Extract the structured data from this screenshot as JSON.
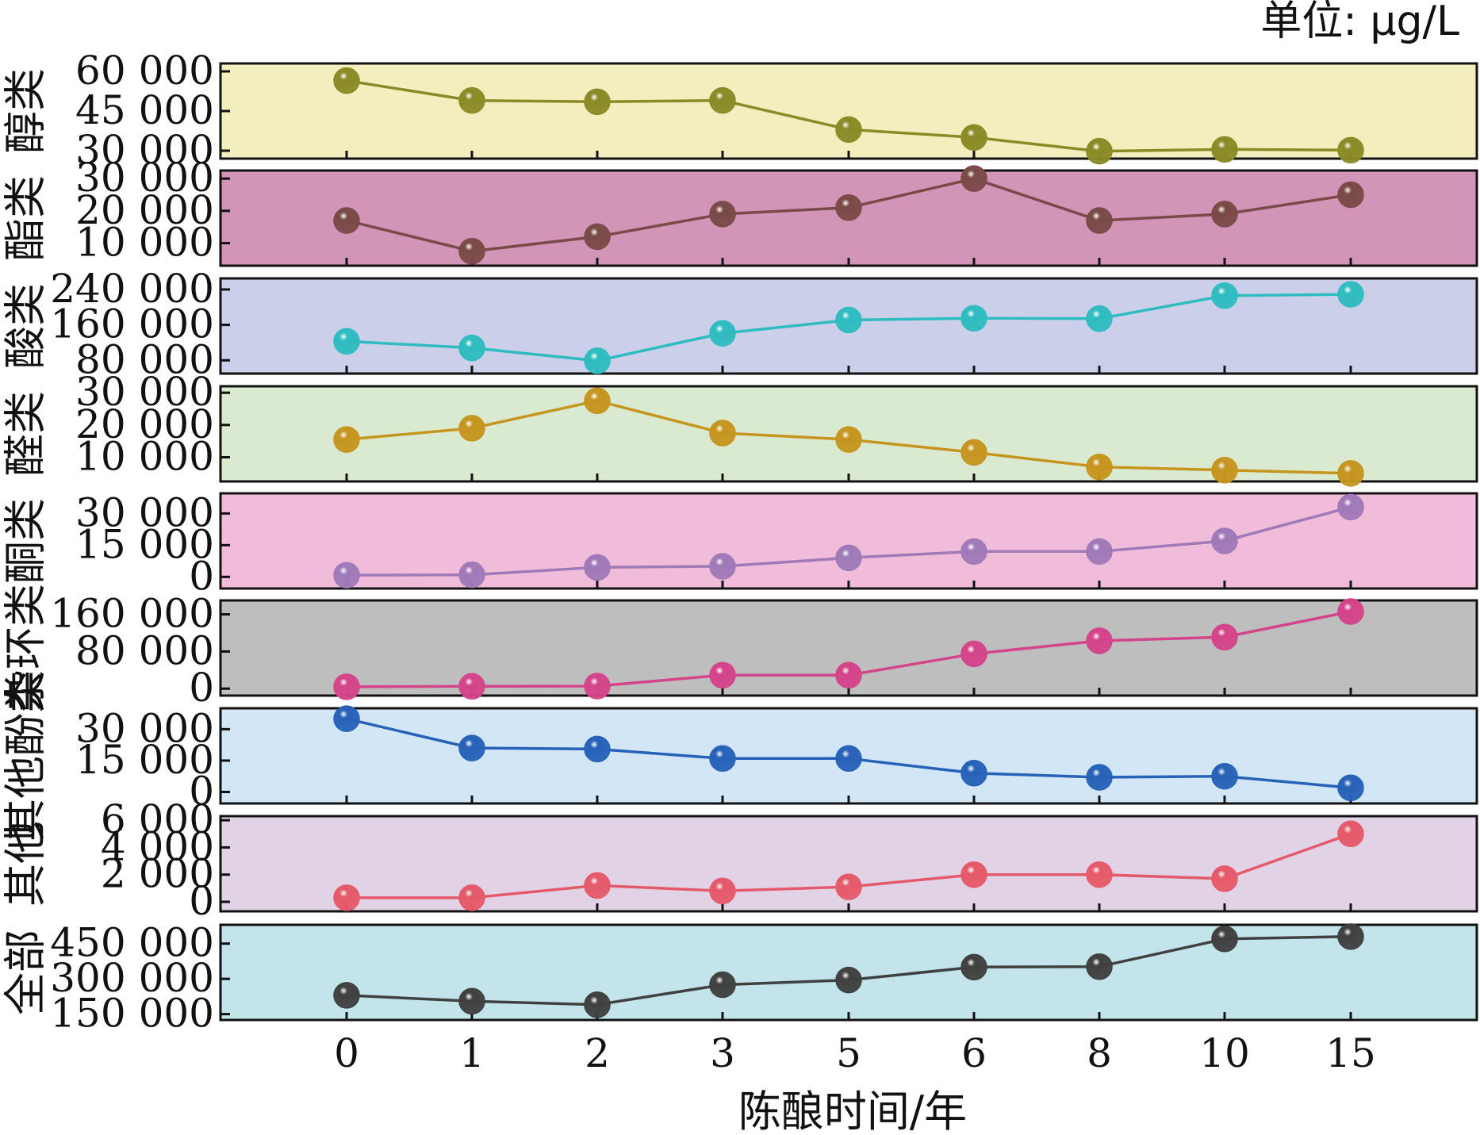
{
  "chart_data": {
    "type": "line",
    "unit": "单位: μg/L",
    "xlabel": "陈酿时间/年",
    "categories": [
      "0",
      "1",
      "2",
      "3",
      "5",
      "6",
      "8",
      "10",
      "15"
    ],
    "panels": [
      {
        "name": "醇类",
        "bg": "#f2eebe",
        "color": "#8a8a26",
        "ylim": [
          27000,
          63000
        ],
        "ticks": [
          30000,
          45000,
          60000
        ],
        "tick_labels": [
          "30 000",
          "45 000",
          "60 000"
        ],
        "values": [
          56500,
          49000,
          48500,
          49000,
          38000,
          35000,
          29800,
          30500,
          30200
        ]
      },
      {
        "name": "酯类",
        "bg": "#d294b7",
        "color": "#7a4a48",
        "ylim": [
          3000,
          32500
        ],
        "ticks": [
          10000,
          20000,
          30000
        ],
        "tick_labels": [
          "10 000",
          "20 000",
          "30 000"
        ],
        "values": [
          17000,
          7500,
          12000,
          19000,
          21000,
          30000,
          17000,
          19000,
          25000
        ]
      },
      {
        "name": "酸类",
        "bg": "#cccfea",
        "color": "#2fbcc0",
        "ylim": [
          50000,
          265000
        ],
        "ticks": [
          80000,
          160000,
          240000
        ],
        "tick_labels": [
          "80 000",
          "160 000",
          "240 000"
        ],
        "values": [
          123000,
          108000,
          79000,
          141000,
          171000,
          175000,
          174000,
          226000,
          229000
        ]
      },
      {
        "name": "醛类",
        "bg": "#d9ead0",
        "color": "#c5951f",
        "ylim": [
          2500,
          32000
        ],
        "ticks": [
          10000,
          20000,
          30000
        ],
        "tick_labels": [
          "10 000",
          "20 000",
          "30 000"
        ],
        "values": [
          15500,
          19000,
          27500,
          17500,
          15500,
          11500,
          7000,
          6000,
          5000
        ]
      },
      {
        "name": "酮类",
        "bg": "#f0bcd9",
        "color": "#a07ab8",
        "ylim": [
          -5500,
          39500
        ],
        "ticks": [
          0,
          15000,
          30000
        ],
        "tick_labels": [
          "0",
          "15 000",
          "30 000"
        ],
        "values": [
          800,
          1000,
          4500,
          5000,
          9000,
          12000,
          12000,
          17000,
          33000
        ]
      },
      {
        "name": "杂环类",
        "bg": "#bebebe",
        "color": "#d4448a",
        "ylim": [
          -15000,
          190000
        ],
        "ticks": [
          0,
          80000,
          160000
        ],
        "tick_labels": [
          "0",
          "80 000",
          "160 000"
        ],
        "values": [
          4000,
          5000,
          5500,
          29000,
          29000,
          75000,
          103000,
          111000,
          166000
        ]
      },
      {
        "name": "其他酚类",
        "bg": "#d2e6f6",
        "color": "#2762b8",
        "ylim": [
          -5500,
          40000
        ],
        "ticks": [
          0,
          15000,
          30000
        ],
        "tick_labels": [
          "0",
          "15 000",
          "30 000"
        ],
        "values": [
          35000,
          21000,
          20500,
          16000,
          16000,
          9000,
          7000,
          7500,
          2000
        ]
      },
      {
        "name": "其他",
        "bg": "#e2d2e6",
        "color": "#e55a6a",
        "ylim": [
          -700,
          6300
        ],
        "ticks": [
          0,
          2000,
          4000,
          6000
        ],
        "tick_labels": [
          "0",
          "2 000",
          "4 000",
          "6 000"
        ],
        "values": [
          300,
          300,
          1200,
          800,
          1100,
          2000,
          2000,
          1700,
          5000
        ]
      },
      {
        "name": "全部",
        "bg": "#c2e4ea",
        "color": "#404040",
        "ylim": [
          125000,
          530000
        ],
        "ticks": [
          150000,
          300000,
          450000
        ],
        "tick_labels": [
          "150 000",
          "300 000",
          "450 000"
        ],
        "values": [
          230000,
          205000,
          190000,
          275000,
          295000,
          350000,
          352000,
          470000,
          480000
        ]
      }
    ]
  }
}
